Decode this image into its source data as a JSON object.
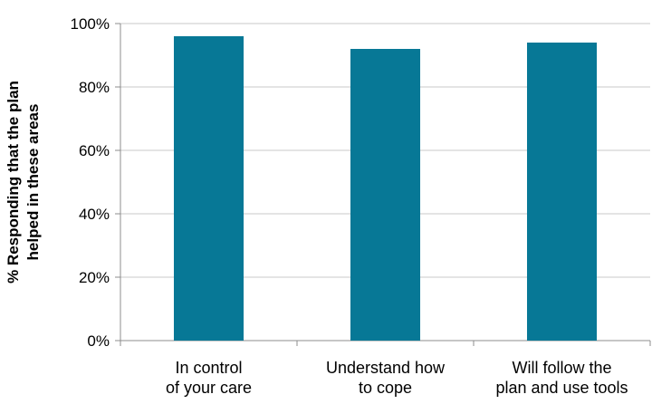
{
  "chart_data": {
    "type": "bar",
    "categories": [
      [
        "In control",
        "of your care"
      ],
      [
        "Understand how",
        "to cope"
      ],
      [
        "Will follow the",
        "plan and use tools"
      ]
    ],
    "values": [
      96,
      92,
      94
    ],
    "ylabel": [
      "% Responding that the plan",
      "helped in these areas"
    ],
    "ylim": [
      0,
      100
    ],
    "yticks": [
      "0%",
      "20%",
      "40%",
      "60%",
      "80%",
      "100%"
    ],
    "grid": true,
    "legend": "none",
    "colors": {
      "bar": "#077896",
      "grid": "#c8c8c8",
      "axis": "#8c8c8c"
    }
  }
}
